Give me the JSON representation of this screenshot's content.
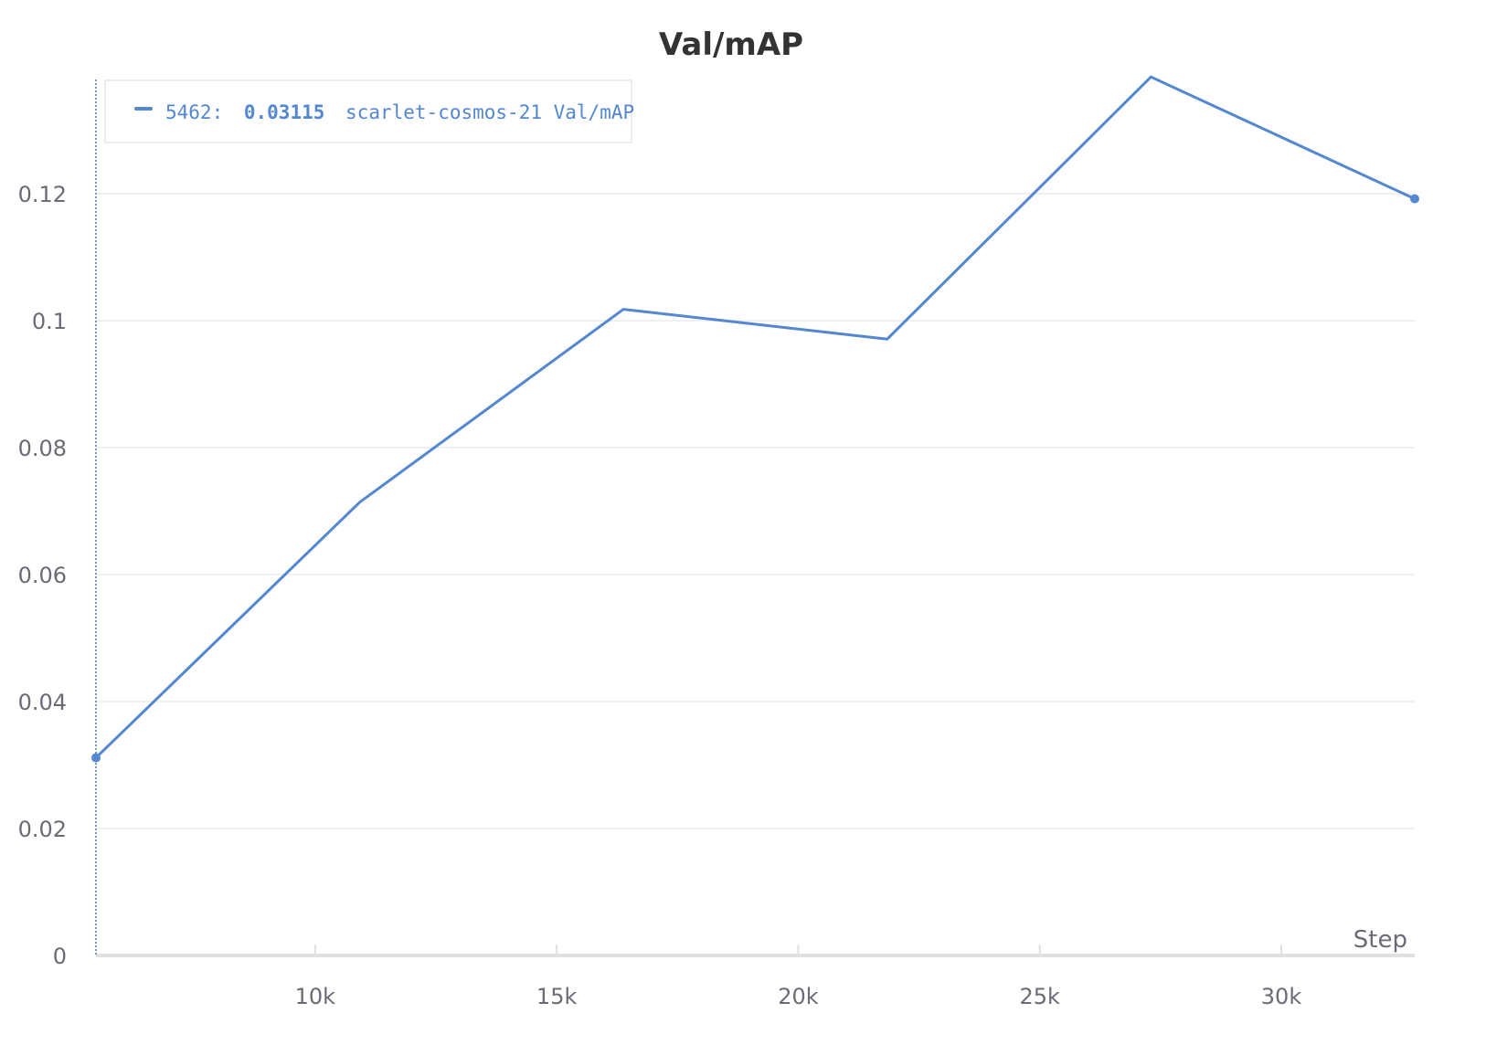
{
  "colors": {
    "series": "#5387d0",
    "grid": "#ebebeb",
    "axis": "#e0e0e0",
    "tick_text": "#6b6b76",
    "title": "#333333",
    "crosshair": "#4a7fa8",
    "legend_border": "#e6e6e6"
  },
  "chart_data": {
    "type": "line",
    "title": "Val/mAP",
    "xlabel": "Step",
    "ylabel": "",
    "xlim": [
      5462,
      32762
    ],
    "ylim": [
      0,
      0.138
    ],
    "x_ticks": [
      10000,
      15000,
      20000,
      25000,
      30000
    ],
    "x_tick_labels": [
      "10k",
      "15k",
      "20k",
      "25k",
      "30k"
    ],
    "y_ticks": [
      0,
      0.02,
      0.04,
      0.06,
      0.08,
      0.1,
      0.12
    ],
    "y_tick_labels": [
      "0",
      "0.02",
      "0.04",
      "0.06",
      "0.08",
      "0.1",
      "0.12"
    ],
    "grid": true,
    "legend_placement": "top-left",
    "series": [
      {
        "name": "scarlet-cosmos-21 Val/mAP",
        "x": [
          5462,
          10922,
          16382,
          21842,
          27302,
          32762
        ],
        "values": [
          0.03115,
          0.0714,
          0.1018,
          0.0971,
          0.1384,
          0.1192
        ]
      }
    ],
    "hover": {
      "step": 5462,
      "step_label": "5462:",
      "value_label": "0.03115",
      "series_label": "scarlet-cosmos-21 Val/mAP"
    }
  }
}
